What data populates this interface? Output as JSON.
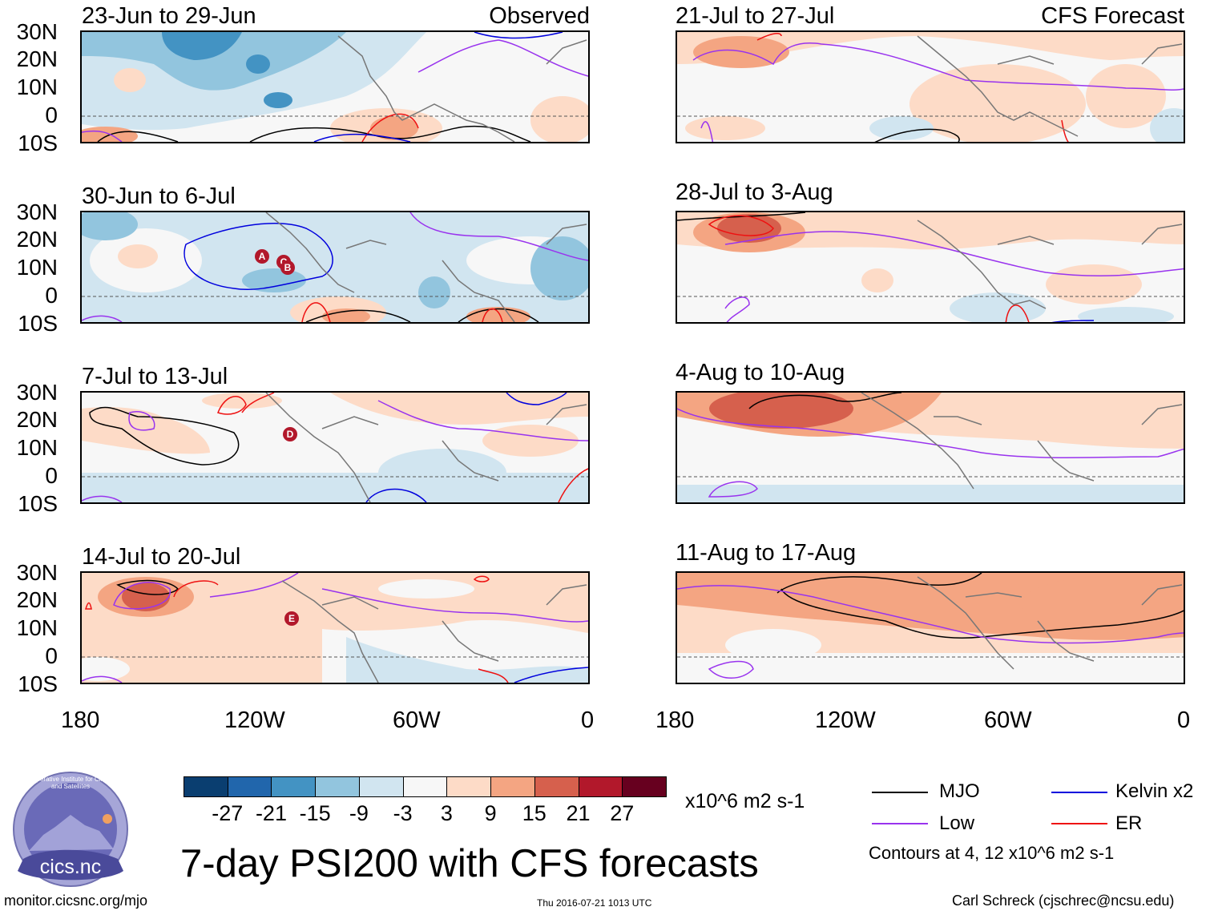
{
  "header": {
    "left_tag": "Observed",
    "right_tag": "CFS Forecast"
  },
  "panels_observed": [
    {
      "label": "23-Jun to 29-Jun"
    },
    {
      "label": "30-Jun to 6-Jul"
    },
    {
      "label": "7-Jul to 13-Jul"
    },
    {
      "label": "14-Jul to 20-Jul"
    }
  ],
  "panels_forecast": [
    {
      "label": "21-Jul to 27-Jul"
    },
    {
      "label": "28-Jul to 3-Aug"
    },
    {
      "label": "4-Aug to 10-Aug"
    },
    {
      "label": "11-Aug to 17-Aug"
    }
  ],
  "axes": {
    "lat_labels": [
      "30N",
      "20N",
      "10N",
      "0",
      "10S"
    ],
    "lon_labels": [
      "180",
      "120W",
      "60W",
      "0"
    ]
  },
  "markers": {
    "panel2": [
      "A",
      "C",
      "B"
    ],
    "panel3": [
      "D"
    ],
    "panel4": [
      "E"
    ]
  },
  "colorbar": {
    "ticks": [
      "-27",
      "-21",
      "-15",
      "-9",
      "-3",
      "3",
      "9",
      "15",
      "21",
      "27"
    ],
    "colors": [
      "#0a3e70",
      "#2166ac",
      "#4393c3",
      "#92c5de",
      "#d1e5f0",
      "#f7f7f7",
      "#fddbc7",
      "#f4a582",
      "#d6604d",
      "#b2182b",
      "#67001f"
    ],
    "units": "x10^6 m2 s-1"
  },
  "legend": {
    "items": [
      {
        "label": "MJO",
        "color": "#000000"
      },
      {
        "label": "Kelvin x2",
        "color": "#0000dd"
      },
      {
        "label": "Low",
        "color": "#9933ee"
      },
      {
        "label": "ER",
        "color": "#ee1111"
      }
    ],
    "contours_note": "Contours at 4, 12 x10^6 m2 s-1"
  },
  "footer": {
    "main_title": "7-day PSI200 with CFS forecasts",
    "website": "monitor.cicsnc.org/mjo",
    "timestamp": "Thu 2016-07-21 1013 UTC",
    "credit": "Carl Schreck (cjschrec@ncsu.edu)",
    "logo_text": "cics.nc",
    "logo_arc_text": "Cooperative Institute for Climate and Satellites"
  }
}
